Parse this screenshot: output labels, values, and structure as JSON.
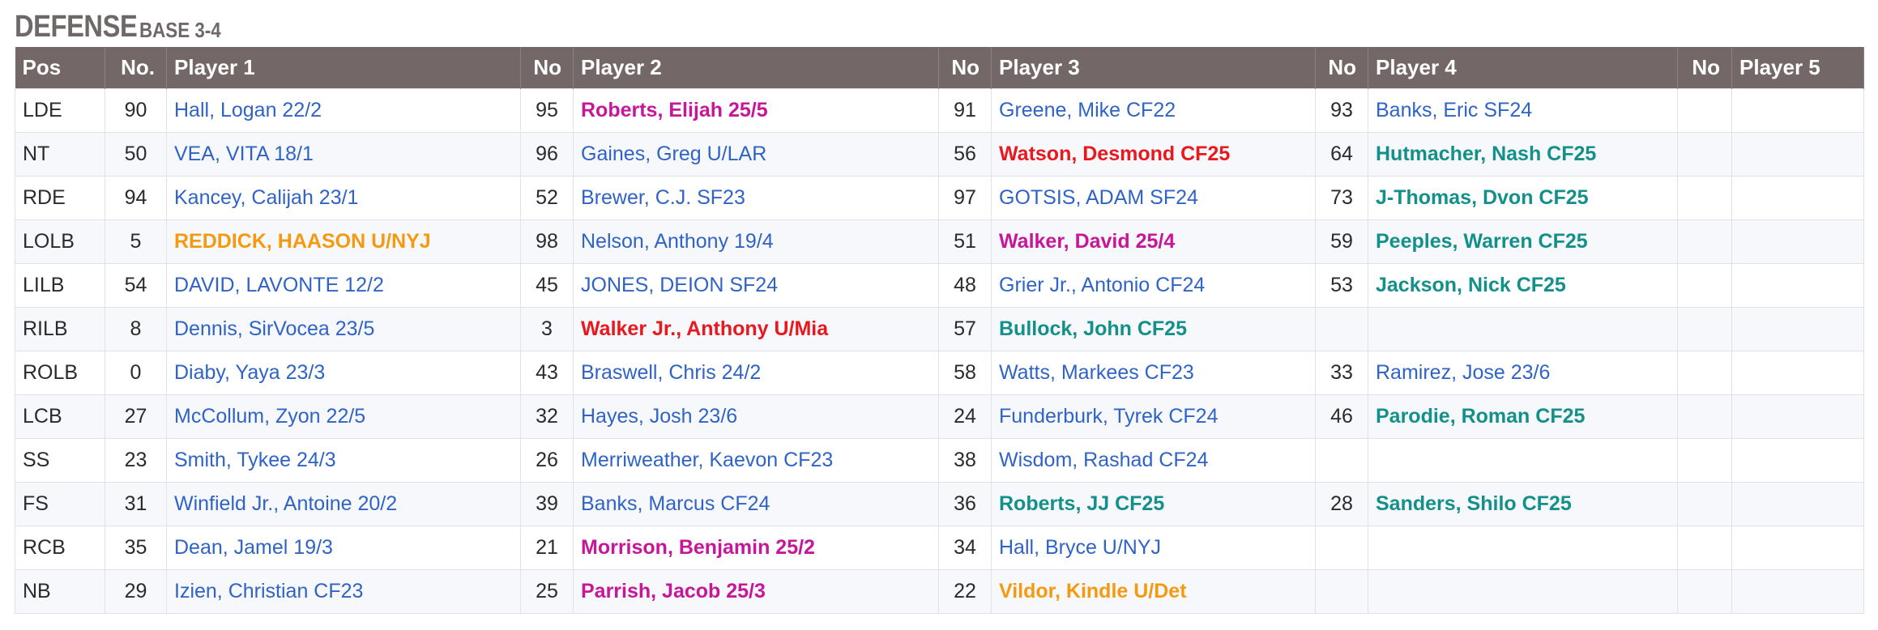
{
  "title": "DEFENSE",
  "subtitle": "BASE 3-4",
  "columns": [
    "Pos",
    "No.",
    "Player 1",
    "No",
    "Player 2",
    "No",
    "Player 3",
    "No",
    "Player 4",
    "No",
    "Player 5"
  ],
  "colors": {
    "header_bg": "#736867",
    "link": "#2f63c5",
    "magenta": "#c6169a",
    "red": "#e8181e",
    "teal": "#13908a",
    "orange": "#f59a10"
  },
  "rows": [
    {
      "pos": "LDE",
      "players": [
        {
          "no": "90",
          "name": "Hall, Logan 22/2",
          "style": "link"
        },
        {
          "no": "95",
          "name": "Roberts, Elijah 25/5",
          "style": "magenta"
        },
        {
          "no": "91",
          "name": "Greene, Mike CF22",
          "style": "link"
        },
        {
          "no": "93",
          "name": "Banks, Eric SF24",
          "style": "link"
        },
        {
          "no": "",
          "name": "",
          "style": "link"
        }
      ]
    },
    {
      "pos": "NT",
      "players": [
        {
          "no": "50",
          "name": "VEA, VITA 18/1",
          "style": "link"
        },
        {
          "no": "96",
          "name": "Gaines, Greg U/LAR",
          "style": "link"
        },
        {
          "no": "56",
          "name": "Watson, Desmond CF25",
          "style": "red"
        },
        {
          "no": "64",
          "name": "Hutmacher, Nash CF25",
          "style": "teal"
        },
        {
          "no": "",
          "name": "",
          "style": "link"
        }
      ]
    },
    {
      "pos": "RDE",
      "players": [
        {
          "no": "94",
          "name": "Kancey, Calijah 23/1",
          "style": "link"
        },
        {
          "no": "52",
          "name": "Brewer, C.J. SF23",
          "style": "link"
        },
        {
          "no": "97",
          "name": "GOTSIS, ADAM SF24",
          "style": "link"
        },
        {
          "no": "73",
          "name": "J-Thomas, Dvon CF25",
          "style": "teal"
        },
        {
          "no": "",
          "name": "",
          "style": "link"
        }
      ]
    },
    {
      "pos": "LOLB",
      "players": [
        {
          "no": "5",
          "name": "REDDICK, HAASON U/NYJ",
          "style": "orange"
        },
        {
          "no": "98",
          "name": "Nelson, Anthony 19/4",
          "style": "link"
        },
        {
          "no": "51",
          "name": "Walker, David 25/4",
          "style": "magenta"
        },
        {
          "no": "59",
          "name": "Peeples, Warren CF25",
          "style": "teal"
        },
        {
          "no": "",
          "name": "",
          "style": "link"
        }
      ]
    },
    {
      "pos": "LILB",
      "players": [
        {
          "no": "54",
          "name": "DAVID, LAVONTE 12/2",
          "style": "link"
        },
        {
          "no": "45",
          "name": "JONES, DEION SF24",
          "style": "link"
        },
        {
          "no": "48",
          "name": "Grier Jr., Antonio CF24",
          "style": "link"
        },
        {
          "no": "53",
          "name": "Jackson, Nick CF25",
          "style": "teal"
        },
        {
          "no": "",
          "name": "",
          "style": "link"
        }
      ]
    },
    {
      "pos": "RILB",
      "players": [
        {
          "no": "8",
          "name": "Dennis, SirVocea 23/5",
          "style": "link"
        },
        {
          "no": "3",
          "name": "Walker Jr., Anthony U/Mia",
          "style": "red"
        },
        {
          "no": "57",
          "name": "Bullock, John CF25",
          "style": "teal"
        },
        {
          "no": "",
          "name": "",
          "style": "link"
        },
        {
          "no": "",
          "name": "",
          "style": "link"
        }
      ]
    },
    {
      "pos": "ROLB",
      "players": [
        {
          "no": "0",
          "name": "Diaby, Yaya 23/3",
          "style": "link"
        },
        {
          "no": "43",
          "name": "Braswell, Chris 24/2",
          "style": "link"
        },
        {
          "no": "58",
          "name": "Watts, Markees CF23",
          "style": "link"
        },
        {
          "no": "33",
          "name": "Ramirez, Jose 23/6",
          "style": "link"
        },
        {
          "no": "",
          "name": "",
          "style": "link"
        }
      ]
    },
    {
      "pos": "LCB",
      "players": [
        {
          "no": "27",
          "name": "McCollum, Zyon 22/5",
          "style": "link"
        },
        {
          "no": "32",
          "name": "Hayes, Josh 23/6",
          "style": "link"
        },
        {
          "no": "24",
          "name": "Funderburk, Tyrek CF24",
          "style": "link"
        },
        {
          "no": "46",
          "name": "Parodie, Roman CF25",
          "style": "teal"
        },
        {
          "no": "",
          "name": "",
          "style": "link"
        }
      ]
    },
    {
      "pos": "SS",
      "players": [
        {
          "no": "23",
          "name": "Smith, Tykee 24/3",
          "style": "link"
        },
        {
          "no": "26",
          "name": "Merriweather, Kaevon CF23",
          "style": "link"
        },
        {
          "no": "38",
          "name": "Wisdom, Rashad CF24",
          "style": "link"
        },
        {
          "no": "",
          "name": "",
          "style": "link"
        },
        {
          "no": "",
          "name": "",
          "style": "link"
        }
      ]
    },
    {
      "pos": "FS",
      "players": [
        {
          "no": "31",
          "name": "Winfield Jr., Antoine 20/2",
          "style": "link"
        },
        {
          "no": "39",
          "name": "Banks, Marcus CF24",
          "style": "link"
        },
        {
          "no": "36",
          "name": "Roberts, JJ CF25",
          "style": "teal"
        },
        {
          "no": "28",
          "name": "Sanders, Shilo CF25",
          "style": "teal"
        },
        {
          "no": "",
          "name": "",
          "style": "link"
        }
      ]
    },
    {
      "pos": "RCB",
      "players": [
        {
          "no": "35",
          "name": "Dean, Jamel 19/3",
          "style": "link"
        },
        {
          "no": "21",
          "name": "Morrison, Benjamin 25/2",
          "style": "magenta"
        },
        {
          "no": "34",
          "name": "Hall, Bryce U/NYJ",
          "style": "link"
        },
        {
          "no": "",
          "name": "",
          "style": "link"
        },
        {
          "no": "",
          "name": "",
          "style": "link"
        }
      ]
    },
    {
      "pos": "NB",
      "players": [
        {
          "no": "29",
          "name": "Izien, Christian CF23",
          "style": "link"
        },
        {
          "no": "25",
          "name": "Parrish, Jacob 25/3",
          "style": "magenta"
        },
        {
          "no": "22",
          "name": "Vildor, Kindle U/Det",
          "style": "orange"
        },
        {
          "no": "",
          "name": "",
          "style": "link"
        },
        {
          "no": "",
          "name": "",
          "style": "link"
        }
      ]
    }
  ]
}
